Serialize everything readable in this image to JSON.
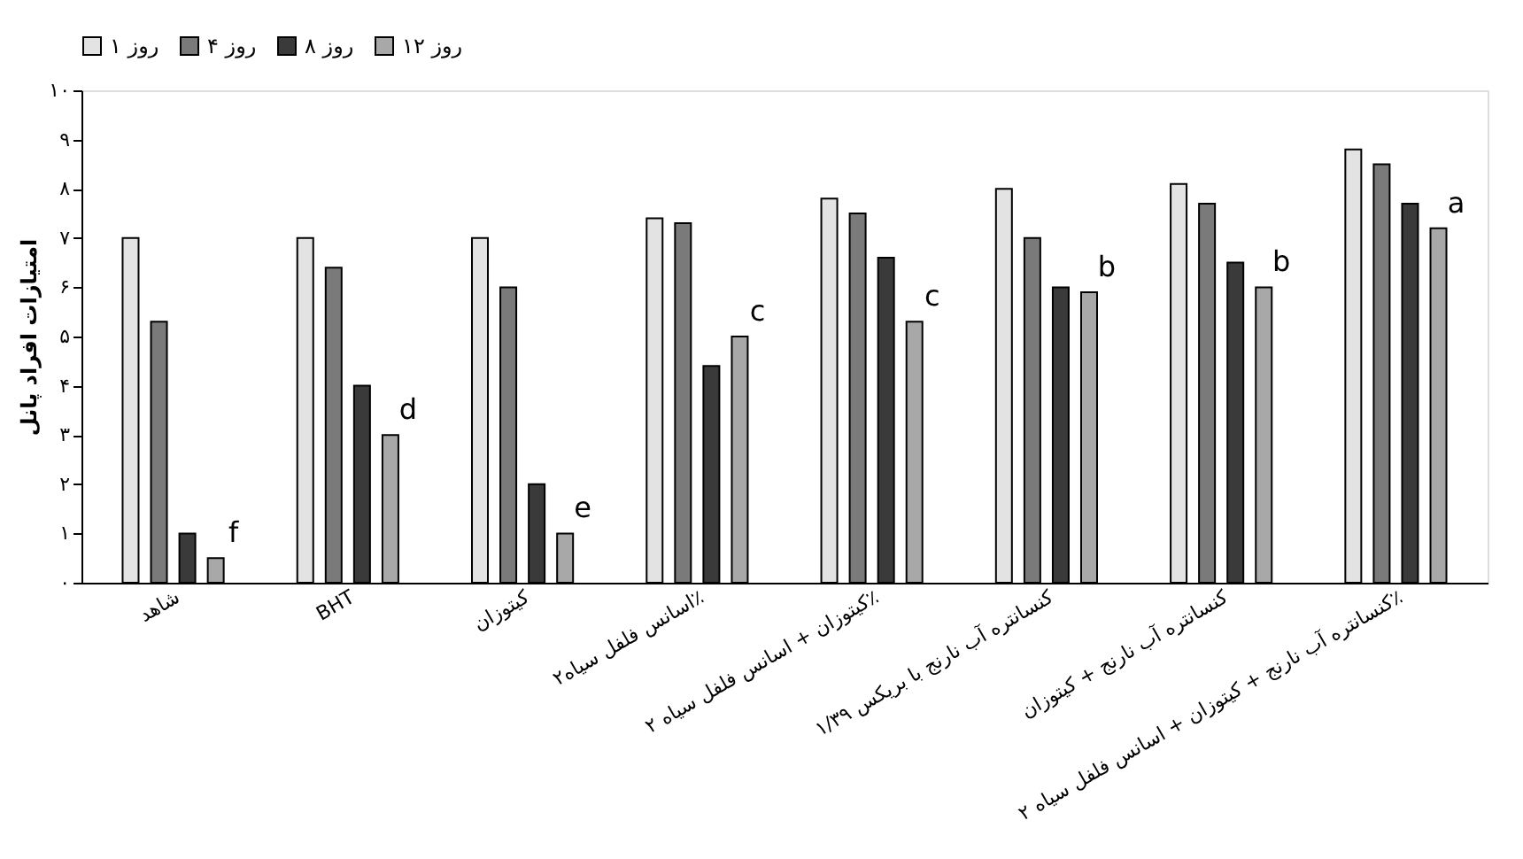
{
  "chart_data": {
    "type": "bar",
    "ylabel": "امتیازات افراد پانل",
    "categories": [
      "شاهد",
      "BHT",
      "کیتوزان",
      "اسانس فلفل سیاه۲٪",
      "کیتوزان + اسانس فلفل سیاه ۲٪",
      "کنسانتره آب نارنج با بریکس ۱/۳۹",
      "کنسانتره آب نارنج + کیتوزان",
      "کنسانتره آب نارنج + کیتوزان + اسانس فلفل سیاه ۲٪"
    ],
    "series": [
      {
        "name": "روز ۱",
        "color": "#e3e3e3",
        "values": [
          7.0,
          7.0,
          7.0,
          7.4,
          7.8,
          8.0,
          8.1,
          8.8
        ]
      },
      {
        "name": "روز ۴",
        "color": "#7a7a7a",
        "values": [
          5.3,
          6.4,
          6.0,
          7.3,
          7.5,
          7.0,
          7.7,
          8.5
        ]
      },
      {
        "name": "روز ۸",
        "color": "#3a3a3a",
        "values": [
          1.0,
          4.0,
          2.0,
          4.4,
          6.6,
          6.0,
          6.5,
          7.7
        ]
      },
      {
        "name": "روز ۱۲",
        "color": "#a8a8a8",
        "values": [
          0.5,
          3.0,
          1.0,
          5.0,
          5.3,
          5.9,
          6.0,
          7.2
        ]
      }
    ],
    "ylim": [
      0,
      10
    ],
    "yticks": [
      {
        "value": 0,
        "label": "۰"
      },
      {
        "value": 1,
        "label": "۱"
      },
      {
        "value": 2,
        "label": "۲"
      },
      {
        "value": 3,
        "label": "۳"
      },
      {
        "value": 4,
        "label": "۴"
      },
      {
        "value": 5,
        "label": "۵"
      },
      {
        "value": 6,
        "label": "۶"
      },
      {
        "value": 7,
        "label": "۷"
      },
      {
        "value": 8,
        "label": "۸"
      },
      {
        "value": 9,
        "label": "۹"
      },
      {
        "value": 10,
        "label": "۱۰"
      }
    ],
    "annotations": [
      "f",
      "d",
      "e",
      "c",
      "c",
      "b",
      "b",
      "a"
    ],
    "legend": "top",
    "grid": false
  }
}
